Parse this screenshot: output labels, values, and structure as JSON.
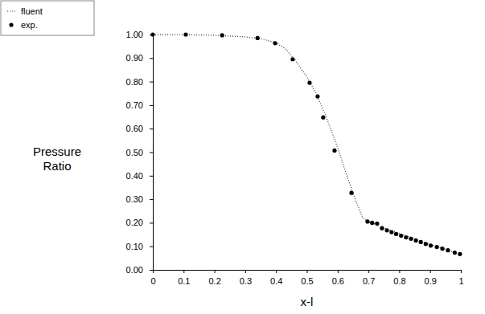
{
  "chart_data": {
    "type": "line",
    "xlabel": "x-l",
    "ylabel": "Pressure Ratio",
    "legend": "upper left",
    "xlim": [
      0,
      1
    ],
    "ylim": [
      0,
      1
    ],
    "xticks": [
      0,
      0.1,
      0.2,
      0.3,
      0.4,
      0.5,
      0.6,
      0.7,
      0.8,
      0.9,
      1
    ],
    "yticks": [
      {
        "value": 0,
        "label": "0.00"
      },
      {
        "value": 0.1,
        "label": "0.10"
      },
      {
        "value": 0.2,
        "label": "0.20"
      },
      {
        "value": 0.3,
        "label": "0.30"
      },
      {
        "value": 0.4,
        "label": "0.40"
      },
      {
        "value": 0.5,
        "label": "0.50"
      },
      {
        "value": 0.6,
        "label": "0.60"
      },
      {
        "value": 0.7,
        "label": "0.70"
      },
      {
        "value": 0.8,
        "label": "0.80"
      },
      {
        "value": 0.9,
        "label": "0.90"
      },
      {
        "value": 1,
        "label": "1.00"
      }
    ],
    "series": [
      {
        "name": "fluent",
        "type": "line",
        "line_style": "dotted",
        "color": "#333333",
        "x": [
          0,
          0.1,
          0.2,
          0.3,
          0.35,
          0.4,
          0.43,
          0.46,
          0.5,
          0.53,
          0.56,
          0.6,
          0.63,
          0.66,
          0.68,
          0.7,
          0.72,
          0.75,
          0.8,
          0.85,
          0.9,
          0.95,
          1
        ],
        "values": [
          1.0,
          0.999,
          0.997,
          0.99,
          0.983,
          0.965,
          0.94,
          0.895,
          0.82,
          0.75,
          0.66,
          0.52,
          0.4,
          0.29,
          0.225,
          0.203,
          0.195,
          0.178,
          0.155,
          0.132,
          0.108,
          0.088,
          0.062
        ]
      },
      {
        "name": "exp.",
        "type": "scatter",
        "marker": "circle",
        "color": "#000000",
        "x": [
          0,
          0.107,
          0.225,
          0.34,
          0.397,
          0.454,
          0.509,
          0.535,
          0.553,
          0.59,
          0.645,
          0.697,
          0.712,
          0.728,
          0.744,
          0.76,
          0.775,
          0.79,
          0.806,
          0.822,
          0.838,
          0.854,
          0.87,
          0.886,
          0.902,
          0.922,
          0.94,
          0.958,
          0.98,
          0.997
        ],
        "values": [
          1.0,
          1.0,
          0.997,
          0.985,
          0.963,
          0.895,
          0.795,
          0.737,
          0.648,
          0.507,
          0.327,
          0.205,
          0.2,
          0.197,
          0.177,
          0.168,
          0.16,
          0.152,
          0.145,
          0.138,
          0.132,
          0.125,
          0.118,
          0.11,
          0.103,
          0.097,
          0.09,
          0.083,
          0.073,
          0.067
        ]
      }
    ]
  }
}
